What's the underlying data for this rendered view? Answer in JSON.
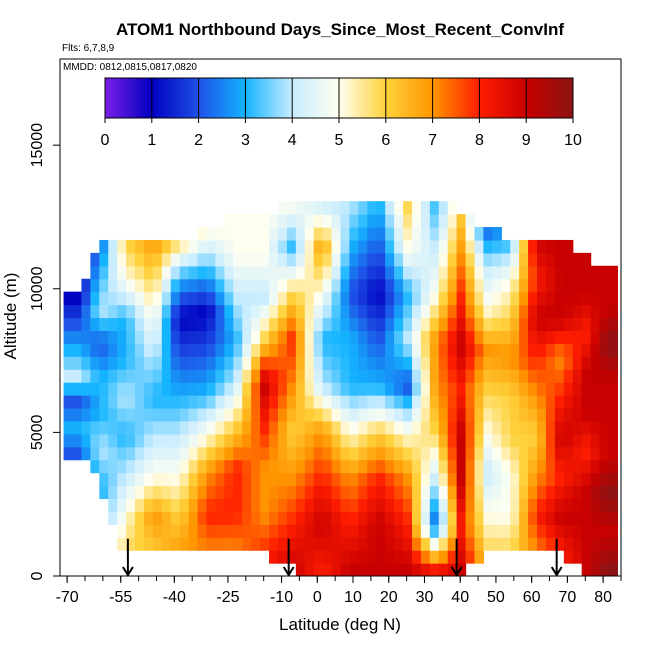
{
  "chart_data": {
    "type": "heatmap",
    "title": "ATOM1 Northbound Days_Since_Most_Recent_ConvInf",
    "flights_label": "Flts: 6,7,8,9",
    "dates_label": "MMDD: 0812,0815,0817,0820",
    "xlabel": "Latitude (deg N)",
    "ylabel": "Altitude (m)",
    "xlim": [
      -72,
      85
    ],
    "ylim": [
      0,
      18000
    ],
    "x_ticks": [
      -70,
      -55,
      -40,
      -25,
      -10,
      0,
      10,
      20,
      30,
      40,
      50,
      60,
      70,
      80
    ],
    "y_ticks": [
      0,
      5000,
      10000,
      15000
    ],
    "colorbar": {
      "ticks": [
        0,
        1,
        2,
        3,
        4,
        5,
        6,
        7,
        8,
        9,
        10
      ],
      "range": [
        0,
        10
      ],
      "colors": [
        "#7a1fe6",
        "#0000c0",
        "#1e50e6",
        "#14b4ff",
        "#c8ecff",
        "#fffff0",
        "#ffd23c",
        "#ff9600",
        "#ff1e00",
        "#c80000",
        "#8c1414"
      ]
    },
    "flight_markers_lat": [
      -53,
      -8,
      39,
      67
    ],
    "profile_columns": [
      {
        "lat": -68,
        "alt_min": 4000,
        "alt_max": 9500,
        "values": [
          2,
          3,
          2,
          4,
          3,
          2,
          1
        ]
      },
      {
        "lat": -62,
        "alt_min": 3000,
        "alt_max": 11500,
        "values": [
          3,
          4,
          3,
          3,
          2,
          4,
          3,
          2
        ]
      },
      {
        "lat": -55,
        "alt_min": 500,
        "alt_max": 11500,
        "values": [
          6,
          5,
          4,
          3,
          4,
          3,
          3,
          5,
          6
        ]
      },
      {
        "lat": -47,
        "alt_min": 500,
        "alt_max": 11500,
        "values": [
          6,
          7,
          5,
          4,
          3,
          4,
          5,
          6,
          7
        ]
      },
      {
        "lat": -40,
        "alt_min": 500,
        "alt_max": 11500,
        "values": [
          7,
          6,
          5,
          4,
          3,
          2,
          1,
          3,
          6
        ]
      },
      {
        "lat": -32,
        "alt_min": 500,
        "alt_max": 11800,
        "values": [
          7,
          8,
          7,
          5,
          3,
          2,
          1,
          3,
          5
        ]
      },
      {
        "lat": -24,
        "alt_min": 500,
        "alt_max": 12500,
        "values": [
          7,
          8,
          8,
          6,
          4,
          3,
          4,
          5,
          5
        ]
      },
      {
        "lat": -16,
        "alt_min": 500,
        "alt_max": 12500,
        "values": [
          8,
          7,
          7,
          8,
          9,
          6,
          4,
          5,
          5
        ]
      },
      {
        "lat": -8,
        "alt_min": 0,
        "alt_max": 12800,
        "values": [
          9,
          8,
          7,
          6,
          7,
          8,
          6,
          3,
          5
        ]
      },
      {
        "lat": 0,
        "alt_min": 0,
        "alt_max": 12800,
        "values": [
          8,
          9,
          8,
          7,
          4,
          3,
          5,
          7,
          4
        ]
      },
      {
        "lat": 8,
        "alt_min": 0,
        "alt_max": 12800,
        "values": [
          9,
          8,
          7,
          5,
          3,
          3,
          2,
          3,
          4
        ]
      },
      {
        "lat": 16,
        "alt_min": 0,
        "alt_max": 12800,
        "values": [
          9,
          9,
          8,
          6,
          3,
          2,
          1,
          2,
          3
        ]
      },
      {
        "lat": 24,
        "alt_min": 0,
        "alt_max": 12800,
        "values": [
          9,
          8,
          7,
          5,
          2,
          4,
          3,
          5,
          6
        ]
      },
      {
        "lat": 32,
        "alt_min": 0,
        "alt_max": 12800,
        "values": [
          8,
          2,
          4,
          6,
          7,
          7,
          5,
          4,
          3
        ]
      },
      {
        "lat": 39,
        "alt_min": 0,
        "alt_max": 12500,
        "values": [
          9,
          8,
          9,
          9,
          8,
          9,
          8,
          7,
          6
        ]
      },
      {
        "lat": 46,
        "alt_min": 500,
        "alt_max": 12000,
        "values": [
          6,
          5,
          4,
          5,
          6,
          7,
          5,
          4,
          2
        ]
      },
      {
        "lat": 53,
        "alt_min": 500,
        "alt_max": 11500,
        "values": [
          6,
          5,
          5,
          6,
          6,
          7,
          6,
          5,
          3
        ]
      },
      {
        "lat": 60,
        "alt_min": 500,
        "alt_max": 11500,
        "values": [
          7,
          8,
          7,
          6,
          7,
          8,
          9,
          8,
          9
        ]
      },
      {
        "lat": 67,
        "alt_min": 500,
        "alt_max": 11500,
        "values": [
          8,
          9,
          8,
          9,
          8,
          7,
          9,
          9,
          9
        ]
      },
      {
        "lat": 74,
        "alt_min": 0,
        "alt_max": 11000,
        "values": [
          9,
          9,
          9,
          8,
          9,
          9,
          8,
          9,
          9
        ]
      },
      {
        "lat": 80,
        "alt_min": 0,
        "alt_max": 10500,
        "values": [
          10,
          9,
          10,
          9,
          9,
          9,
          10,
          9,
          9
        ]
      }
    ]
  }
}
